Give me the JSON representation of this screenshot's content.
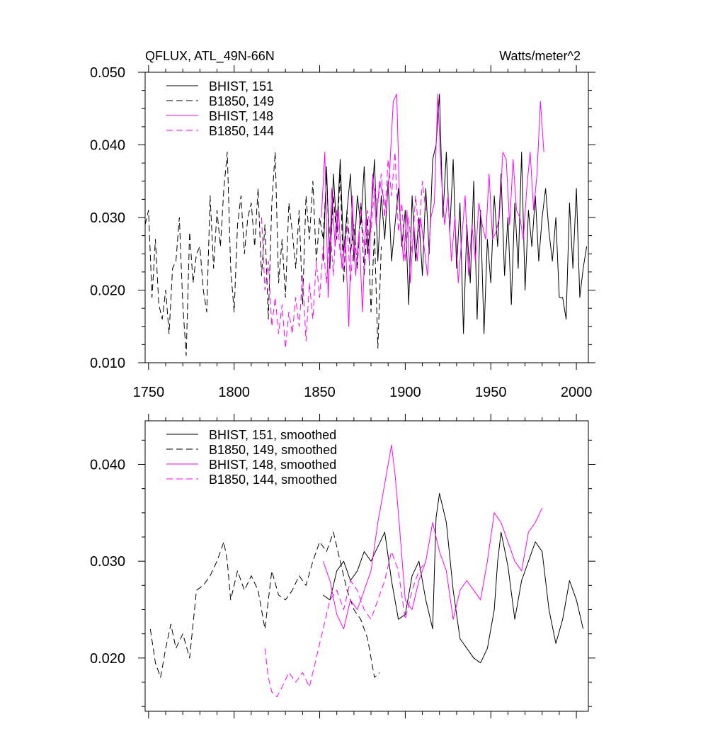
{
  "colors": {
    "black": "#000000",
    "magenta": "#ff00ff"
  },
  "chart_data": [
    {
      "type": "line",
      "title": "QFLUX, ATL_49N-66N",
      "units": "Watts/meter^2",
      "xlim": [
        1748,
        2007
      ],
      "ylim": [
        0.01,
        0.05
      ],
      "xticks": [
        1750,
        1800,
        1850,
        1900,
        1950,
        2000
      ],
      "xtick_labels": [
        "1750",
        "1800",
        "1850",
        "1900",
        "1950",
        "2000"
      ],
      "yticks": [
        0.01,
        0.02,
        0.03,
        0.04,
        0.05
      ],
      "ytick_labels": [
        "0.010",
        "0.020",
        "0.030",
        "0.040",
        "0.050"
      ],
      "legend_position": "top-left",
      "series": [
        {
          "name": "BHIST, 151",
          "color": "#000000",
          "dash": "solid",
          "x": [
            1852,
            1854,
            1856,
            1858,
            1860,
            1862,
            1864,
            1866,
            1868,
            1870,
            1872,
            1874,
            1876,
            1878,
            1880,
            1882,
            1884,
            1886,
            1888,
            1890,
            1892,
            1894,
            1896,
            1898,
            1900,
            1902,
            1904,
            1906,
            1908,
            1910,
            1912,
            1914,
            1916,
            1918,
            1920,
            1922,
            1924,
            1926,
            1928,
            1930,
            1932,
            1934,
            1936,
            1938,
            1940,
            1942,
            1944,
            1946,
            1948,
            1950,
            1952,
            1954,
            1956,
            1958,
            1960,
            1962,
            1964,
            1966,
            1968,
            1970,
            1972,
            1974,
            1976,
            1978,
            1980,
            1982,
            1984,
            1986,
            1988,
            1990,
            1992,
            1994,
            1996,
            1998,
            2000,
            2002,
            2004,
            2006
          ],
          "y": [
            0.024,
            0.037,
            0.023,
            0.036,
            0.028,
            0.038,
            0.025,
            0.031,
            0.036,
            0.024,
            0.033,
            0.029,
            0.037,
            0.025,
            0.03,
            0.038,
            0.024,
            0.033,
            0.027,
            0.035,
            0.024,
            0.029,
            0.034,
            0.026,
            0.031,
            0.018,
            0.033,
            0.024,
            0.03,
            0.022,
            0.034,
            0.025,
            0.038,
            0.04,
            0.047,
            0.03,
            0.039,
            0.028,
            0.038,
            0.023,
            0.032,
            0.014,
            0.029,
            0.021,
            0.035,
            0.016,
            0.031,
            0.014,
            0.027,
            0.021,
            0.033,
            0.026,
            0.036,
            0.022,
            0.03,
            0.018,
            0.032,
            0.023,
            0.039,
            0.02,
            0.031,
            0.026,
            0.033,
            0.024,
            0.03,
            0.034,
            0.028,
            0.024,
            0.03,
            0.019,
            0.019,
            0.016,
            0.032,
            0.023,
            0.034,
            0.019,
            0.023,
            0.026
          ]
        },
        {
          "name": "B1850, 149",
          "color": "#000000",
          "dash": "dashed",
          "x": [
            1748,
            1750,
            1752,
            1754,
            1756,
            1758,
            1760,
            1762,
            1764,
            1766,
            1768,
            1770,
            1772,
            1774,
            1776,
            1778,
            1780,
            1782,
            1784,
            1786,
            1788,
            1790,
            1792,
            1794,
            1796,
            1798,
            1800,
            1802,
            1804,
            1806,
            1808,
            1810,
            1812,
            1814,
            1816,
            1818,
            1820,
            1822,
            1824,
            1826,
            1828,
            1830,
            1832,
            1834,
            1836,
            1838,
            1840,
            1842,
            1844,
            1846,
            1848,
            1850,
            1852,
            1854,
            1856,
            1858,
            1860,
            1862,
            1864,
            1866,
            1868,
            1870,
            1872,
            1874,
            1876,
            1878,
            1880,
            1882,
            1884,
            1886
          ],
          "y": [
            0.029,
            0.031,
            0.019,
            0.027,
            0.018,
            0.016,
            0.02,
            0.014,
            0.023,
            0.024,
            0.03,
            0.018,
            0.011,
            0.028,
            0.021,
            0.025,
            0.026,
            0.02,
            0.017,
            0.033,
            0.023,
            0.031,
            0.026,
            0.034,
            0.039,
            0.023,
            0.017,
            0.029,
            0.033,
            0.025,
            0.03,
            0.032,
            0.026,
            0.034,
            0.022,
            0.029,
            0.016,
            0.032,
            0.039,
            0.021,
            0.027,
            0.019,
            0.032,
            0.028,
            0.023,
            0.031,
            0.018,
            0.033,
            0.027,
            0.035,
            0.024,
            0.03,
            0.027,
            0.036,
            0.024,
            0.033,
            0.027,
            0.036,
            0.021,
            0.031,
            0.025,
            0.029,
            0.023,
            0.032,
            0.022,
            0.03,
            0.017,
            0.028,
            0.012,
            0.026
          ]
        },
        {
          "name": "BHIST, 148",
          "color": "#ff00ff",
          "dash": "solid",
          "x": [
            1851,
            1853,
            1855,
            1857,
            1859,
            1861,
            1863,
            1865,
            1867,
            1869,
            1871,
            1873,
            1875,
            1877,
            1879,
            1881,
            1883,
            1885,
            1887,
            1889,
            1891,
            1893,
            1895,
            1897,
            1899,
            1901,
            1903,
            1905,
            1907,
            1909,
            1911,
            1913,
            1915,
            1917,
            1919,
            1921,
            1923,
            1925,
            1927,
            1929,
            1931,
            1933,
            1935,
            1937,
            1939,
            1941,
            1943,
            1945,
            1947,
            1949,
            1951,
            1953,
            1955,
            1957,
            1959,
            1961,
            1963,
            1965,
            1967,
            1969,
            1971,
            1973,
            1975,
            1977,
            1979,
            1981
          ],
          "y": [
            0.03,
            0.039,
            0.019,
            0.034,
            0.026,
            0.031,
            0.023,
            0.027,
            0.015,
            0.033,
            0.022,
            0.028,
            0.017,
            0.03,
            0.024,
            0.036,
            0.029,
            0.035,
            0.033,
            0.031,
            0.037,
            0.046,
            0.047,
            0.03,
            0.024,
            0.031,
            0.021,
            0.029,
            0.024,
            0.03,
            0.026,
            0.022,
            0.03,
            0.032,
            0.047,
            0.036,
            0.029,
            0.033,
            0.024,
            0.03,
            0.021,
            0.027,
            0.033,
            0.022,
            0.029,
            0.024,
            0.032,
            0.029,
            0.027,
            0.036,
            0.027,
            0.028,
            0.03,
            0.039,
            0.038,
            0.029,
            0.038,
            0.031,
            0.03,
            0.027,
            0.034,
            0.039,
            0.031,
            0.036,
            0.046,
            0.039
          ]
        },
        {
          "name": "B1850, 144",
          "color": "#ff00ff",
          "dash": "dashed",
          "x": [
            1816,
            1818,
            1820,
            1822,
            1824,
            1826,
            1828,
            1830,
            1832,
            1834,
            1836,
            1838,
            1840,
            1842,
            1844,
            1846,
            1848,
            1850,
            1852,
            1854,
            1856,
            1858,
            1860,
            1862,
            1864,
            1866,
            1868,
            1870,
            1872,
            1874,
            1876,
            1878,
            1880,
            1882,
            1884,
            1886,
            1888,
            1890,
            1892,
            1894,
            1896,
            1898,
            1900,
            1902,
            1904,
            1906,
            1908,
            1910,
            1912
          ],
          "y": [
            0.03,
            0.02,
            0.024,
            0.015,
            0.019,
            0.014,
            0.018,
            0.012,
            0.017,
            0.014,
            0.019,
            0.015,
            0.022,
            0.013,
            0.021,
            0.016,
            0.024,
            0.019,
            0.026,
            0.021,
            0.029,
            0.022,
            0.031,
            0.025,
            0.023,
            0.029,
            0.021,
            0.027,
            0.024,
            0.032,
            0.026,
            0.031,
            0.028,
            0.034,
            0.032,
            0.036,
            0.03,
            0.038,
            0.033,
            0.039,
            0.028,
            0.032,
            0.024,
            0.03,
            0.025,
            0.033,
            0.028,
            0.035,
            0.031
          ]
        }
      ]
    },
    {
      "type": "line",
      "xlim": [
        1748,
        2007
      ],
      "ylim": [
        0.0145,
        0.0445
      ],
      "xticks": [
        1750,
        1800,
        1850,
        1900,
        1950,
        2000
      ],
      "yticks": [
        0.02,
        0.03,
        0.04
      ],
      "ytick_labels": [
        "0.020",
        "0.030",
        "0.040"
      ],
      "legend_position": "top-left",
      "series": [
        {
          "name": "BHIST, 151, smoothed",
          "color": "#000000",
          "dash": "solid",
          "x": [
            1852,
            1856,
            1860,
            1864,
            1868,
            1872,
            1876,
            1880,
            1884,
            1888,
            1892,
            1896,
            1900,
            1904,
            1908,
            1912,
            1916,
            1918,
            1920,
            1922,
            1924,
            1928,
            1932,
            1936,
            1940,
            1944,
            1948,
            1952,
            1954,
            1956,
            1960,
            1964,
            1968,
            1972,
            1976,
            1980,
            1984,
            1988,
            1992,
            1996,
            2000,
            2004
          ],
          "y": [
            0.0265,
            0.026,
            0.029,
            0.03,
            0.028,
            0.029,
            0.031,
            0.03,
            0.0315,
            0.033,
            0.028,
            0.024,
            0.0245,
            0.0285,
            0.03,
            0.026,
            0.023,
            0.0345,
            0.037,
            0.0355,
            0.034,
            0.027,
            0.022,
            0.021,
            0.02,
            0.0195,
            0.021,
            0.025,
            0.03,
            0.033,
            0.0295,
            0.024,
            0.028,
            0.03,
            0.032,
            0.031,
            0.025,
            0.0215,
            0.024,
            0.028,
            0.026,
            0.023
          ]
        },
        {
          "name": "B1850, 149, smoothed",
          "color": "#000000",
          "dash": "dashed",
          "x": [
            1751,
            1754,
            1757,
            1760,
            1763,
            1766,
            1770,
            1774,
            1778,
            1782,
            1786,
            1790,
            1794,
            1796,
            1798,
            1802,
            1806,
            1810,
            1814,
            1818,
            1822,
            1826,
            1830,
            1834,
            1838,
            1842,
            1846,
            1850,
            1854,
            1858,
            1862,
            1866,
            1870,
            1874,
            1878,
            1882,
            1885
          ],
          "y": [
            0.023,
            0.0195,
            0.018,
            0.021,
            0.0235,
            0.021,
            0.0225,
            0.02,
            0.027,
            0.0275,
            0.0285,
            0.03,
            0.032,
            0.03,
            0.026,
            0.029,
            0.027,
            0.0285,
            0.027,
            0.023,
            0.029,
            0.0265,
            0.026,
            0.027,
            0.0285,
            0.0275,
            0.03,
            0.032,
            0.031,
            0.033,
            0.03,
            0.027,
            0.025,
            0.024,
            0.022,
            0.018,
            0.0185
          ]
        },
        {
          "name": "BHIST, 148, smoothed",
          "color": "#ff00ff",
          "dash": "solid",
          "x": [
            1852,
            1856,
            1860,
            1864,
            1868,
            1872,
            1876,
            1880,
            1884,
            1888,
            1892,
            1894,
            1896,
            1900,
            1904,
            1908,
            1912,
            1916,
            1920,
            1924,
            1928,
            1932,
            1936,
            1940,
            1944,
            1948,
            1952,
            1956,
            1960,
            1964,
            1968,
            1972,
            1976,
            1980
          ],
          "y": [
            0.03,
            0.028,
            0.0245,
            0.023,
            0.026,
            0.025,
            0.027,
            0.029,
            0.034,
            0.038,
            0.042,
            0.039,
            0.035,
            0.026,
            0.025,
            0.028,
            0.03,
            0.034,
            0.031,
            0.029,
            0.024,
            0.027,
            0.028,
            0.027,
            0.026,
            0.03,
            0.035,
            0.034,
            0.032,
            0.03,
            0.029,
            0.033,
            0.034,
            0.0355
          ]
        },
        {
          "name": "B1850, 144, smoothed",
          "color": "#ff00ff",
          "dash": "dashed",
          "x": [
            1818,
            1820,
            1822,
            1825,
            1828,
            1832,
            1836,
            1840,
            1844,
            1848,
            1852,
            1856,
            1860,
            1864,
            1868,
            1872,
            1876,
            1880,
            1884,
            1888,
            1892,
            1896,
            1900,
            1904,
            1908,
            1912
          ],
          "y": [
            0.021,
            0.018,
            0.0165,
            0.016,
            0.017,
            0.0185,
            0.0175,
            0.0185,
            0.017,
            0.02,
            0.023,
            0.026,
            0.027,
            0.025,
            0.028,
            0.027,
            0.025,
            0.024,
            0.026,
            0.028,
            0.031,
            0.029,
            0.024,
            0.027,
            0.029,
            0.03
          ]
        }
      ]
    }
  ]
}
